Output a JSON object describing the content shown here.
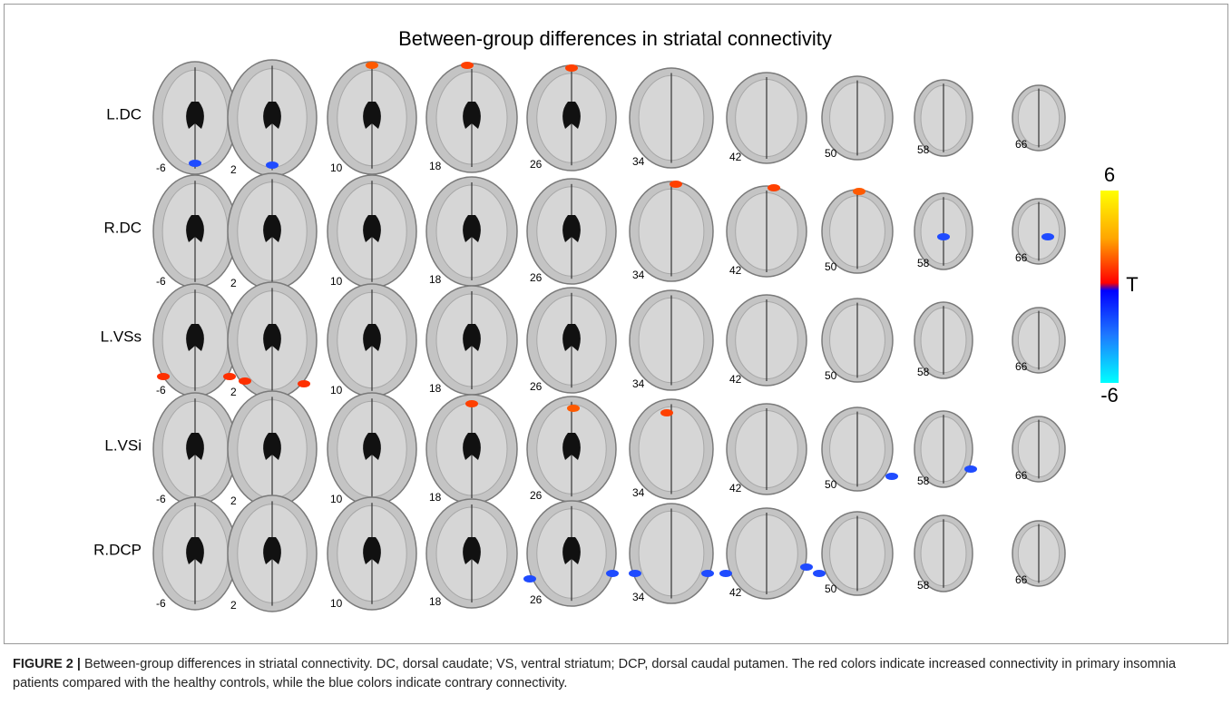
{
  "figure": {
    "title": "Between-group differences in striatal connectivity",
    "rows": [
      "L.DC",
      "R.DC",
      "L.VSs",
      "L.VSi",
      "R.DCP"
    ],
    "slices": [
      "-6",
      "2",
      "10",
      "18",
      "26",
      "34",
      "42",
      "50",
      "58",
      "66"
    ],
    "colorbar": {
      "max": "6",
      "label": "T",
      "min": "-6"
    },
    "caption": {
      "label": "FIGURE 2 |",
      "text": "Between-group differences in striatal connectivity. DC, dorsal caudate; VS, ventral striatum; DCP, dorsal caudal putamen. The red colors indicate increased connectivity in primary insomnia patients compared with the healthy controls, while the blue colors indicate contrary connectivity."
    }
  }
}
